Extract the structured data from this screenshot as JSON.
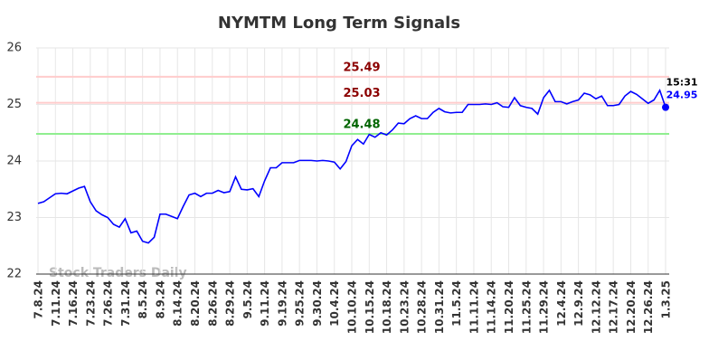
{
  "chart_data": {
    "type": "line",
    "title": "NYMTM Long Term Signals",
    "watermark": "Stock Traders Daily",
    "last_time": "15:31",
    "ylim": [
      22,
      26
    ],
    "yticks": [
      22,
      23,
      24,
      25,
      26
    ],
    "grid": true,
    "hlines": [
      {
        "value": 25.49,
        "line_color": "#ffcccc",
        "label_color": "#8b0000"
      },
      {
        "value": 25.03,
        "line_color": "#ffcccc",
        "label_color": "#8b0000"
      },
      {
        "value": 24.48,
        "line_color": "#90ee90",
        "label_color": "#006400"
      }
    ],
    "categories": [
      "7.8.24",
      null,
      null,
      "7.11.24",
      null,
      null,
      "7.16.24",
      null,
      null,
      "7.23.24",
      null,
      null,
      "7.26.24",
      null,
      null,
      "7.31.24",
      null,
      null,
      "8.5.24",
      null,
      null,
      "8.9.24",
      null,
      null,
      "8.14.24",
      null,
      null,
      "8.20.24",
      null,
      null,
      "8.26.24",
      null,
      null,
      "8.29.24",
      null,
      null,
      "9.5.24",
      null,
      null,
      "9.11.24",
      null,
      null,
      "9.19.24",
      null,
      null,
      "9.25.24",
      null,
      null,
      "9.30.24",
      null,
      null,
      "10.4.24",
      null,
      null,
      "10.10.24",
      null,
      null,
      "10.15.24",
      null,
      null,
      "10.18.24",
      null,
      null,
      "10.23.24",
      null,
      null,
      "10.28.24",
      null,
      null,
      "10.31.24",
      null,
      null,
      "11.5.24",
      null,
      null,
      "11.11.24",
      null,
      null,
      "11.14.24",
      null,
      null,
      "11.20.24",
      null,
      null,
      "11.25.24",
      null,
      null,
      "11.29.24",
      null,
      null,
      "12.4.24",
      null,
      null,
      "12.9.24",
      null,
      null,
      "12.12.24",
      null,
      null,
      "12.17.24",
      null,
      null,
      "12.20.24",
      null,
      null,
      "12.26.24",
      null,
      null,
      "1.3.25"
    ],
    "series": [
      {
        "name": "NYMTM",
        "color": "#0000ff",
        "values": [
          23.25,
          23.28,
          23.35,
          23.42,
          23.43,
          23.42,
          23.47,
          23.52,
          23.55,
          23.28,
          23.12,
          23.05,
          23.0,
          22.88,
          22.83,
          22.98,
          22.73,
          22.76,
          22.58,
          22.55,
          22.65,
          23.06,
          23.06,
          23.02,
          22.98,
          23.2,
          23.4,
          23.43,
          23.37,
          23.43,
          23.43,
          23.48,
          23.44,
          23.46,
          23.72,
          23.5,
          23.49,
          23.51,
          23.37,
          23.65,
          23.88,
          23.88,
          23.97,
          23.97,
          23.97,
          24.01,
          24.01,
          24.01,
          24.0,
          24.01,
          24.0,
          23.98,
          23.86,
          23.99,
          24.27,
          24.38,
          24.3,
          24.47,
          24.42,
          24.5,
          24.46,
          24.55,
          24.67,
          24.66,
          24.75,
          24.8,
          24.75,
          24.75,
          24.86,
          24.93,
          24.87,
          24.85,
          24.86,
          24.86,
          25.0,
          25.0,
          25.0,
          25.01,
          25.0,
          25.03,
          24.96,
          24.95,
          25.12,
          24.98,
          24.95,
          24.93,
          24.83,
          25.12,
          25.25,
          25.05,
          25.05,
          25.01,
          25.05,
          25.08,
          25.2,
          25.17,
          25.1,
          25.15,
          24.98,
          24.98,
          25.0,
          25.15,
          25.23,
          25.18,
          25.1,
          25.02,
          25.08,
          25.25,
          24.95
        ]
      }
    ]
  }
}
